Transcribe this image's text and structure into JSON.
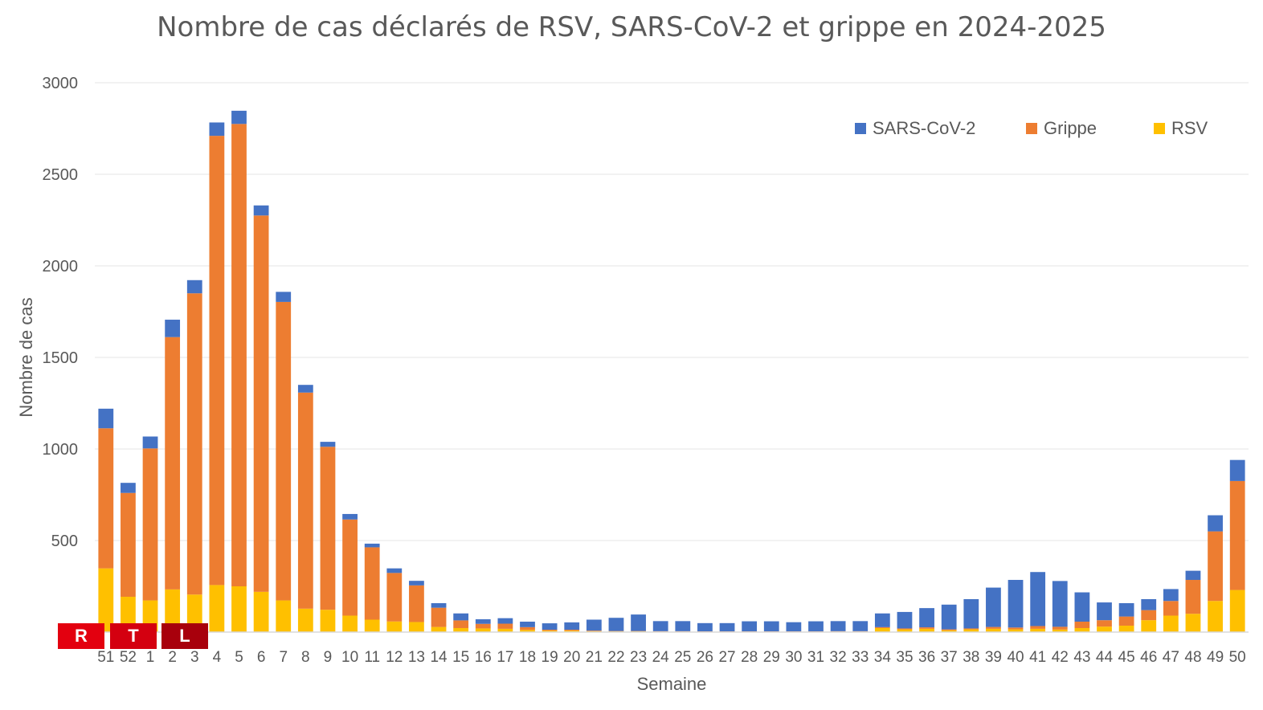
{
  "chart_data": {
    "type": "bar",
    "stacked": true,
    "title": "Nombre de cas déclarés de RSV, SARS-CoV-2 et grippe en 2024-2025",
    "xlabel": "Semaine",
    "ylabel": "Nombre de cas",
    "ylim": [
      0,
      3000
    ],
    "yticks": [
      0,
      500,
      1000,
      1500,
      2000,
      2500,
      3000
    ],
    "ytick_labels": [
      "",
      "500",
      "1000",
      "1500",
      "2000",
      "2500",
      "3000"
    ],
    "grid": true,
    "legend_position": "top-right",
    "categories": [
      "51",
      "52",
      "1",
      "2",
      "3",
      "4",
      "5",
      "6",
      "7",
      "8",
      "9",
      "10",
      "11",
      "12",
      "13",
      "14",
      "15",
      "16",
      "17",
      "18",
      "19",
      "20",
      "21",
      "22",
      "23",
      "24",
      "25",
      "26",
      "27",
      "28",
      "29",
      "30",
      "31",
      "32",
      "33",
      "34",
      "35",
      "36",
      "37",
      "38",
      "39",
      "40",
      "41",
      "42",
      "43",
      "44",
      "45",
      "46",
      "47",
      "48",
      "49",
      "50"
    ],
    "series": [
      {
        "name": "RSV",
        "color": "#FFC000",
        "values": [
          348,
          193,
          173,
          233,
          205,
          257,
          250,
          220,
          173,
          128,
          122,
          90,
          68,
          58,
          55,
          28,
          22,
          20,
          18,
          12,
          8,
          8,
          5,
          4,
          4,
          3,
          3,
          2,
          2,
          2,
          2,
          2,
          2,
          3,
          3,
          22,
          15,
          18,
          10,
          15,
          18,
          15,
          18,
          14,
          22,
          30,
          35,
          65,
          90,
          100,
          170,
          230
        ]
      },
      {
        "name": "Grippe",
        "color": "#ED7D31",
        "values": [
          765,
          567,
          830,
          1378,
          1645,
          2453,
          2525,
          2055,
          1630,
          1180,
          890,
          525,
          395,
          265,
          200,
          105,
          42,
          25,
          28,
          15,
          5,
          5,
          3,
          2,
          2,
          2,
          2,
          2,
          2,
          2,
          2,
          2,
          2,
          2,
          2,
          5,
          5,
          8,
          5,
          5,
          10,
          10,
          15,
          15,
          35,
          35,
          50,
          55,
          80,
          185,
          380,
          595
        ]
      },
      {
        "name": "SARS-CoV-2",
        "color": "#4472C4",
        "values": [
          107,
          55,
          65,
          95,
          72,
          73,
          72,
          55,
          55,
          42,
          27,
          30,
          20,
          25,
          25,
          25,
          38,
          25,
          30,
          30,
          35,
          40,
          60,
          72,
          90,
          55,
          55,
          45,
          45,
          55,
          55,
          50,
          55,
          55,
          55,
          75,
          90,
          105,
          135,
          160,
          215,
          260,
          295,
          250,
          160,
          97,
          73,
          60,
          65,
          50,
          88,
          115
        ]
      }
    ]
  },
  "logo": {
    "letters": [
      "R",
      "T",
      "L"
    ]
  }
}
